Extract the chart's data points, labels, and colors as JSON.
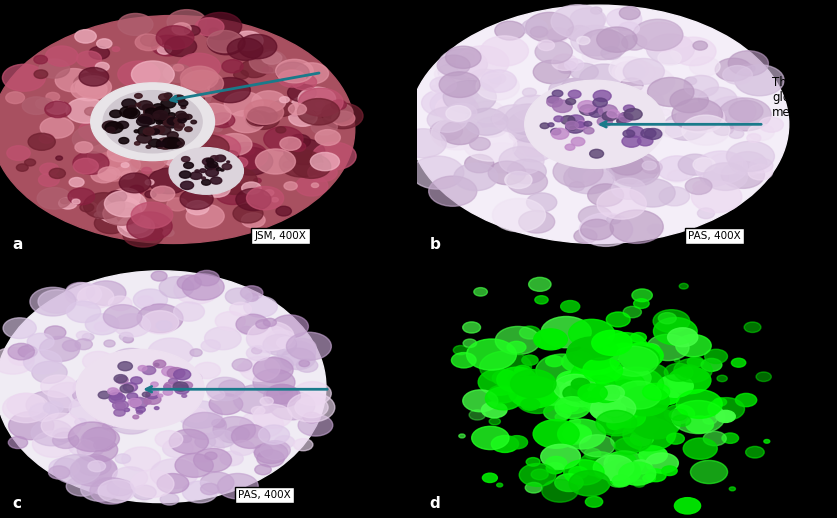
{
  "fig_width": 8.3,
  "fig_height": 5.18,
  "bg_color": "#000000",
  "label_a": "a",
  "label_b": "b",
  "label_c": "c",
  "label_d": "d",
  "annotation_text_abc": "Thickened\nglomerular\nmembrane",
  "arrow_color": "#1a7a8a",
  "label_fontsize": 11,
  "annotation_fontsize": 8.5,
  "stain_a": "JSM, 400X",
  "stain_b": "PAS, 400X",
  "stain_c": "PAS, 400X"
}
